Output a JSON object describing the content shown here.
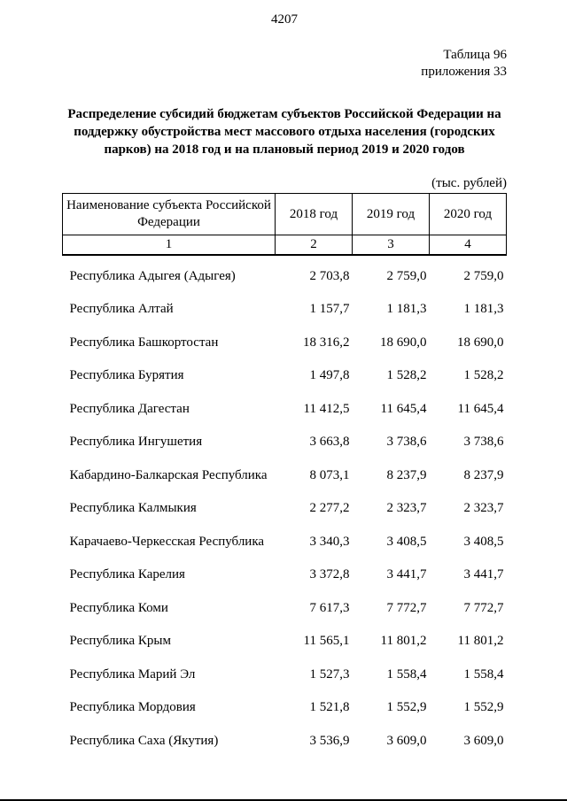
{
  "page": {
    "page_number": "4207",
    "table_ref": "Таблица 96",
    "annex_ref": "приложения 33",
    "title": "Распределение субсидий бюджетам субъектов Российской Федерации на поддержку обустройства мест массового отдыха населения (городских парков) на 2018 год и на плановый период 2019 и 2020 годов",
    "units": "(тыс. рублей)"
  },
  "table": {
    "headers": {
      "subject": "Наименование субъекта Российской Федерации",
      "y2018": "2018 год",
      "y2019": "2019 год",
      "y2020": "2020 год"
    },
    "column_numbers": [
      "1",
      "2",
      "3",
      "4"
    ],
    "rows": [
      {
        "name": "Республика Адыгея (Адыгея)",
        "values": [
          "2 703,8",
          "2 759,0",
          "2 759,0"
        ]
      },
      {
        "name": "Республика Алтай",
        "values": [
          "1 157,7",
          "1 181,3",
          "1 181,3"
        ]
      },
      {
        "name": "Республика Башкортостан",
        "values": [
          "18 316,2",
          "18 690,0",
          "18 690,0"
        ]
      },
      {
        "name": "Республика Бурятия",
        "values": [
          "1 497,8",
          "1 528,2",
          "1 528,2"
        ]
      },
      {
        "name": "Республика Дагестан",
        "values": [
          "11 412,5",
          "11 645,4",
          "11 645,4"
        ]
      },
      {
        "name": "Республика Ингушетия",
        "values": [
          "3 663,8",
          "3 738,6",
          "3 738,6"
        ]
      },
      {
        "name": "Кабардино-Балкарская Республика",
        "values": [
          "8 073,1",
          "8 237,9",
          "8 237,9"
        ]
      },
      {
        "name": "Республика Калмыкия",
        "values": [
          "2 277,2",
          "2 323,7",
          "2 323,7"
        ]
      },
      {
        "name": "Карачаево-Черкесская Республика",
        "values": [
          "3 340,3",
          "3 408,5",
          "3 408,5"
        ]
      },
      {
        "name": "Республика Карелия",
        "values": [
          "3 372,8",
          "3 441,7",
          "3 441,7"
        ]
      },
      {
        "name": "Республика Коми",
        "values": [
          "7 617,3",
          "7 772,7",
          "7 772,7"
        ]
      },
      {
        "name": "Республика Крым",
        "values": [
          "11 565,1",
          "11 801,2",
          "11 801,2"
        ]
      },
      {
        "name": "Республика Марий Эл",
        "values": [
          "1 527,3",
          "1 558,4",
          "1 558,4"
        ]
      },
      {
        "name": "Республика Мордовия",
        "values": [
          "1 521,8",
          "1 552,9",
          "1 552,9"
        ]
      },
      {
        "name": "Республика Саха (Якутия)",
        "values": [
          "3 536,9",
          "3 609,0",
          "3 609,0"
        ]
      }
    ]
  }
}
